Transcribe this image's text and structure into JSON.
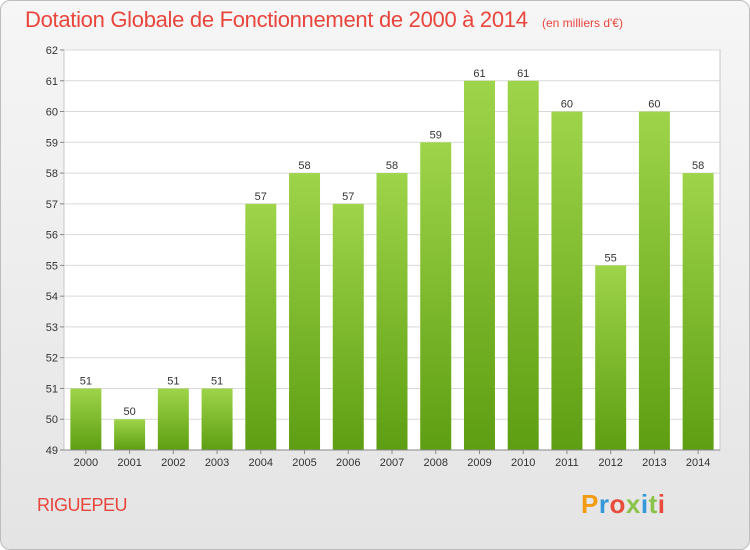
{
  "header": {
    "title": "Dotation Globale de Fonctionnement de 2000 à 2014",
    "unit_note": "(en milliers d'€)"
  },
  "footer": {
    "commune": "RIGUEPEU",
    "brand": "Proxiti",
    "brand_colors": [
      "#f39c12",
      "#3498db",
      "#e74c3c",
      "#8bc34a",
      "#3498db",
      "#8bc34a",
      "#e74c3c"
    ]
  },
  "colors": {
    "title": "#e8453c",
    "bar_top": "#9ed44a",
    "bar_bottom": "#5e9e12"
  },
  "chart_data": {
    "type": "bar",
    "title": "Dotation Globale de Fonctionnement de 2000 à 2014",
    "subtitle": "(en milliers d'€)",
    "xlabel": "",
    "ylabel": "",
    "categories": [
      "2000",
      "2001",
      "2002",
      "2003",
      "2004",
      "2005",
      "2006",
      "2007",
      "2008",
      "2009",
      "2010",
      "2011",
      "2012",
      "2013",
      "2014"
    ],
    "values": [
      51,
      50,
      51,
      51,
      57,
      58,
      57,
      58,
      59,
      61,
      61,
      60,
      55,
      60,
      58
    ],
    "ylim": [
      49,
      62
    ],
    "yticks": [
      49,
      50,
      51,
      52,
      53,
      54,
      55,
      56,
      57,
      58,
      59,
      60,
      61,
      62
    ],
    "grid": true,
    "legend": "none"
  }
}
